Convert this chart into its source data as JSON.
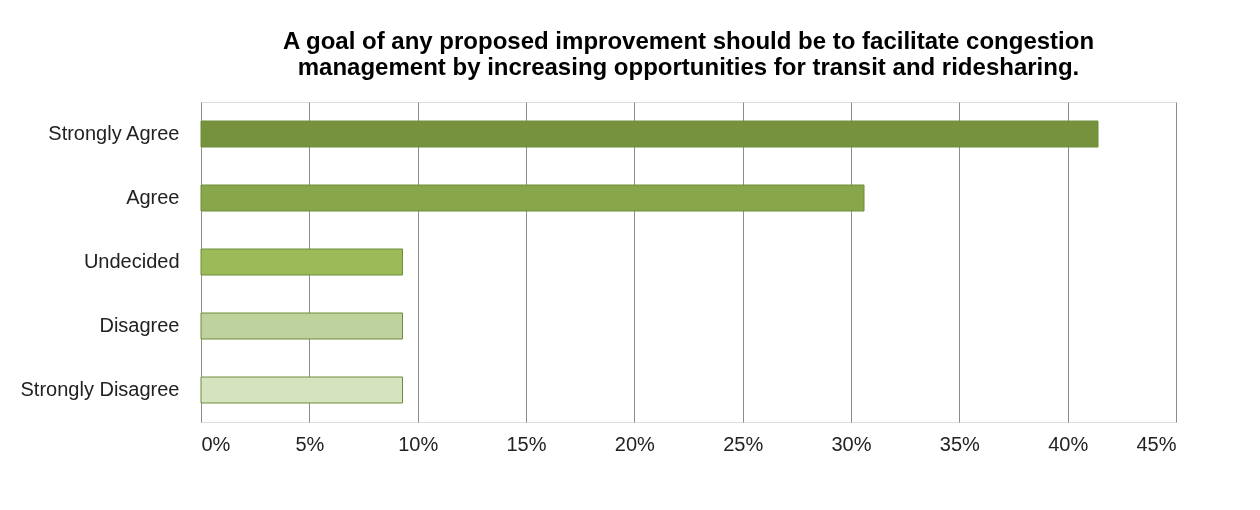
{
  "chart_data": {
    "type": "bar",
    "orientation": "horizontal",
    "title": "A goal of any proposed improvement should be to facilitate congestion\nmanagement by increasing opportunities for transit and ridesharing.",
    "categories": [
      "Strongly Agree",
      "Agree",
      "Undecided",
      "Disagree",
      "Strongly Disagree"
    ],
    "values": [
      41.4,
      30.6,
      9.3,
      9.3,
      9.3
    ],
    "colors": [
      "#76923c",
      "#88a64a",
      "#9bbb59",
      "#bdd29c",
      "#d6e3bf"
    ],
    "xlim": [
      0,
      45
    ],
    "xticks": [
      {
        "value": 0,
        "label": "0%"
      },
      {
        "value": 5,
        "label": "5%"
      },
      {
        "value": 10,
        "label": "10%"
      },
      {
        "value": 15,
        "label": "15%"
      },
      {
        "value": 20,
        "label": "20%"
      },
      {
        "value": 25,
        "label": "25%"
      },
      {
        "value": 30,
        "label": "30%"
      },
      {
        "value": 35,
        "label": "35%"
      },
      {
        "value": 40,
        "label": "40%"
      },
      {
        "value": 45,
        "label": "45%"
      }
    ],
    "grid": "x",
    "legend": false
  }
}
